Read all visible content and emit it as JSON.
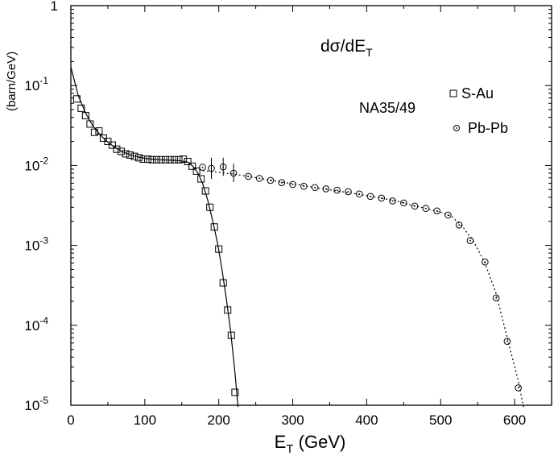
{
  "chart_data": {
    "type": "scatter",
    "ylabel": "(barn/GeV)",
    "xlabel_main": "E",
    "xlabel_sub": "T",
    "xlabel_unit": " (GeV)",
    "y_scale": "log",
    "xlim": [
      0,
      650
    ],
    "ylim": [
      1e-05,
      1
    ],
    "grid": false,
    "x_ticks": [
      {
        "value": 0,
        "label": "0"
      },
      {
        "value": 100,
        "label": "100"
      },
      {
        "value": 200,
        "label": "200"
      },
      {
        "value": 300,
        "label": "300"
      },
      {
        "value": 400,
        "label": "400"
      },
      {
        "value": 500,
        "label": "500"
      },
      {
        "value": 600,
        "label": "600"
      }
    ],
    "y_ticks": [
      {
        "value": 1,
        "base": "1",
        "exp": ""
      },
      {
        "value": 0.1,
        "base": "10",
        "exp": "-1"
      },
      {
        "value": 0.01,
        "base": "10",
        "exp": "-2"
      },
      {
        "value": 0.001,
        "base": "10",
        "exp": "-3"
      },
      {
        "value": 0.0001,
        "base": "10",
        "exp": "-4"
      },
      {
        "value": 1e-05,
        "base": "10",
        "exp": "-5"
      }
    ],
    "annotations": {
      "title_main": "dσ/dE",
      "title_sub": "T",
      "experiment": "NA35/49"
    },
    "legend_position": "top-right",
    "series": [
      {
        "name": "S-Au",
        "marker": "square",
        "points": [
          [
            8,
            0.068
          ],
          [
            14,
            0.052
          ],
          [
            20,
            0.042
          ],
          [
            26,
            0.033
          ],
          [
            32,
            0.026
          ],
          [
            38,
            0.027
          ],
          [
            44,
            0.022
          ],
          [
            50,
            0.02
          ],
          [
            56,
            0.018
          ],
          [
            62,
            0.016
          ],
          [
            68,
            0.015
          ],
          [
            74,
            0.014
          ],
          [
            80,
            0.0135
          ],
          [
            86,
            0.013
          ],
          [
            92,
            0.0125
          ],
          [
            98,
            0.012
          ],
          [
            104,
            0.012
          ],
          [
            110,
            0.0118
          ],
          [
            116,
            0.0118
          ],
          [
            122,
            0.0118
          ],
          [
            128,
            0.0118
          ],
          [
            134,
            0.0118
          ],
          [
            140,
            0.0118
          ],
          [
            146,
            0.0118
          ],
          [
            152,
            0.012
          ],
          [
            158,
            0.0112
          ],
          [
            164,
            0.0098
          ],
          [
            170,
            0.0085
          ],
          [
            176,
            0.0068
          ],
          [
            182,
            0.0048
          ],
          [
            188,
            0.003
          ],
          [
            194,
            0.0017
          ],
          [
            200,
            0.0009
          ],
          [
            206,
            0.00034
          ],
          [
            212,
            0.000155
          ],
          [
            217,
            7.5e-05
          ],
          [
            222,
            1.45e-05
          ]
        ],
        "fit": [
          [
            0,
            0.17
          ],
          [
            10,
            0.075
          ],
          [
            20,
            0.045
          ],
          [
            30,
            0.031
          ],
          [
            40,
            0.024
          ],
          [
            50,
            0.0195
          ],
          [
            60,
            0.0167
          ],
          [
            70,
            0.0148
          ],
          [
            80,
            0.0136
          ],
          [
            90,
            0.0128
          ],
          [
            100,
            0.0123
          ],
          [
            110,
            0.012
          ],
          [
            120,
            0.0118
          ],
          [
            130,
            0.0117
          ],
          [
            140,
            0.0116
          ],
          [
            150,
            0.0114
          ],
          [
            158,
            0.011
          ],
          [
            165,
            0.0098
          ],
          [
            172,
            0.008
          ],
          [
            178,
            0.006
          ],
          [
            185,
            0.0037
          ],
          [
            192,
            0.002
          ],
          [
            198,
            0.0011
          ],
          [
            204,
            0.00052
          ],
          [
            210,
            0.00022
          ],
          [
            216,
            8.5e-05
          ],
          [
            222,
            2.5e-05
          ],
          [
            226,
            9.5e-06
          ]
        ]
      },
      {
        "name": "Pb-Pb",
        "marker": "circle",
        "points": [
          [
            178,
            0.0095
          ],
          [
            190,
            0.0092
          ],
          [
            206,
            0.0096
          ],
          [
            220,
            0.008
          ],
          [
            240,
            0.0073
          ],
          [
            255,
            0.0069
          ],
          [
            270,
            0.0065
          ],
          [
            285,
            0.0061
          ],
          [
            300,
            0.0058
          ],
          [
            315,
            0.0055
          ],
          [
            330,
            0.0053
          ],
          [
            345,
            0.0051
          ],
          [
            360,
            0.0049
          ],
          [
            375,
            0.0047
          ],
          [
            390,
            0.0044
          ],
          [
            405,
            0.0041
          ],
          [
            420,
            0.0039
          ],
          [
            435,
            0.0036
          ],
          [
            450,
            0.0034
          ],
          [
            465,
            0.0031
          ],
          [
            480,
            0.0029
          ],
          [
            495,
            0.0027
          ],
          [
            510,
            0.0024
          ],
          [
            525,
            0.0018
          ],
          [
            540,
            0.00115
          ],
          [
            560,
            0.00062
          ],
          [
            575,
            0.00022
          ],
          [
            590,
            6.3e-05
          ],
          [
            605,
            1.65e-05
          ]
        ],
        "error_bars": [
          {
            "x": 190,
            "low": 0.0068,
            "high": 0.0125
          },
          {
            "x": 206,
            "low": 0.0074,
            "high": 0.0125
          },
          {
            "x": 220,
            "low": 0.0062,
            "high": 0.0105
          }
        ],
        "fit": [
          [
            168,
            0.0092
          ],
          [
            180,
            0.0086
          ],
          [
            200,
            0.0082
          ],
          [
            220,
            0.0078
          ],
          [
            240,
            0.0073
          ],
          [
            260,
            0.0068
          ],
          [
            280,
            0.0063
          ],
          [
            300,
            0.0059
          ],
          [
            320,
            0.0055
          ],
          [
            340,
            0.0051
          ],
          [
            360,
            0.0048
          ],
          [
            380,
            0.0045
          ],
          [
            400,
            0.0042
          ],
          [
            420,
            0.0039
          ],
          [
            440,
            0.0036
          ],
          [
            460,
            0.0032
          ],
          [
            480,
            0.0029
          ],
          [
            500,
            0.0026
          ],
          [
            515,
            0.0023
          ],
          [
            530,
            0.0017
          ],
          [
            545,
            0.0011
          ],
          [
            560,
            0.0006
          ],
          [
            575,
            0.00025
          ],
          [
            590,
            7e-05
          ],
          [
            605,
            2e-05
          ],
          [
            612,
            9.5e-06
          ]
        ]
      }
    ]
  }
}
